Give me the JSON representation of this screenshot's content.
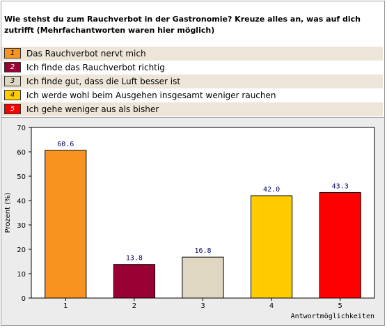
{
  "question": "Wie stehst du zum Rauchverbot in der Gastronomie? Kreuze alles an, was auf dich zutrifft (Mehrfachantworten waren hier möglich)",
  "legend": [
    {
      "num": "1",
      "label": "Das Rauchverbot nervt mich",
      "color": "#f7931e"
    },
    {
      "num": "2",
      "label": "Ich finde das Rauchverbot richtig",
      "color": "#990033"
    },
    {
      "num": "3",
      "label": "Ich finde gut, dass die Luft besser ist",
      "color": "#e0d7c3"
    },
    {
      "num": "4",
      "label": "Ich werde wohl beim Ausgehen insgesamt weniger rauchen",
      "color": "#ffcc00"
    },
    {
      "num": "5",
      "label": "Ich gehe weniger aus als bisher",
      "color": "#ff0000"
    }
  ],
  "chart_data": {
    "type": "bar",
    "categories": [
      "1",
      "2",
      "3",
      "4",
      "5"
    ],
    "values": [
      60.6,
      13.8,
      16.8,
      42.0,
      43.3
    ],
    "value_labels": [
      "60.6",
      "13.8",
      "16.8",
      "42.0",
      "43.3"
    ],
    "colors": [
      "#f7931e",
      "#990033",
      "#e0d7c3",
      "#ffcc00",
      "#ff0000"
    ],
    "ylabel": "Prozent (%)",
    "xlabel": "Antwortmöglichkeiten",
    "ylim": [
      0,
      70
    ],
    "yticks": [
      0,
      10,
      20,
      30,
      40,
      50,
      60,
      70
    ],
    "grid": false,
    "legend": "top"
  }
}
